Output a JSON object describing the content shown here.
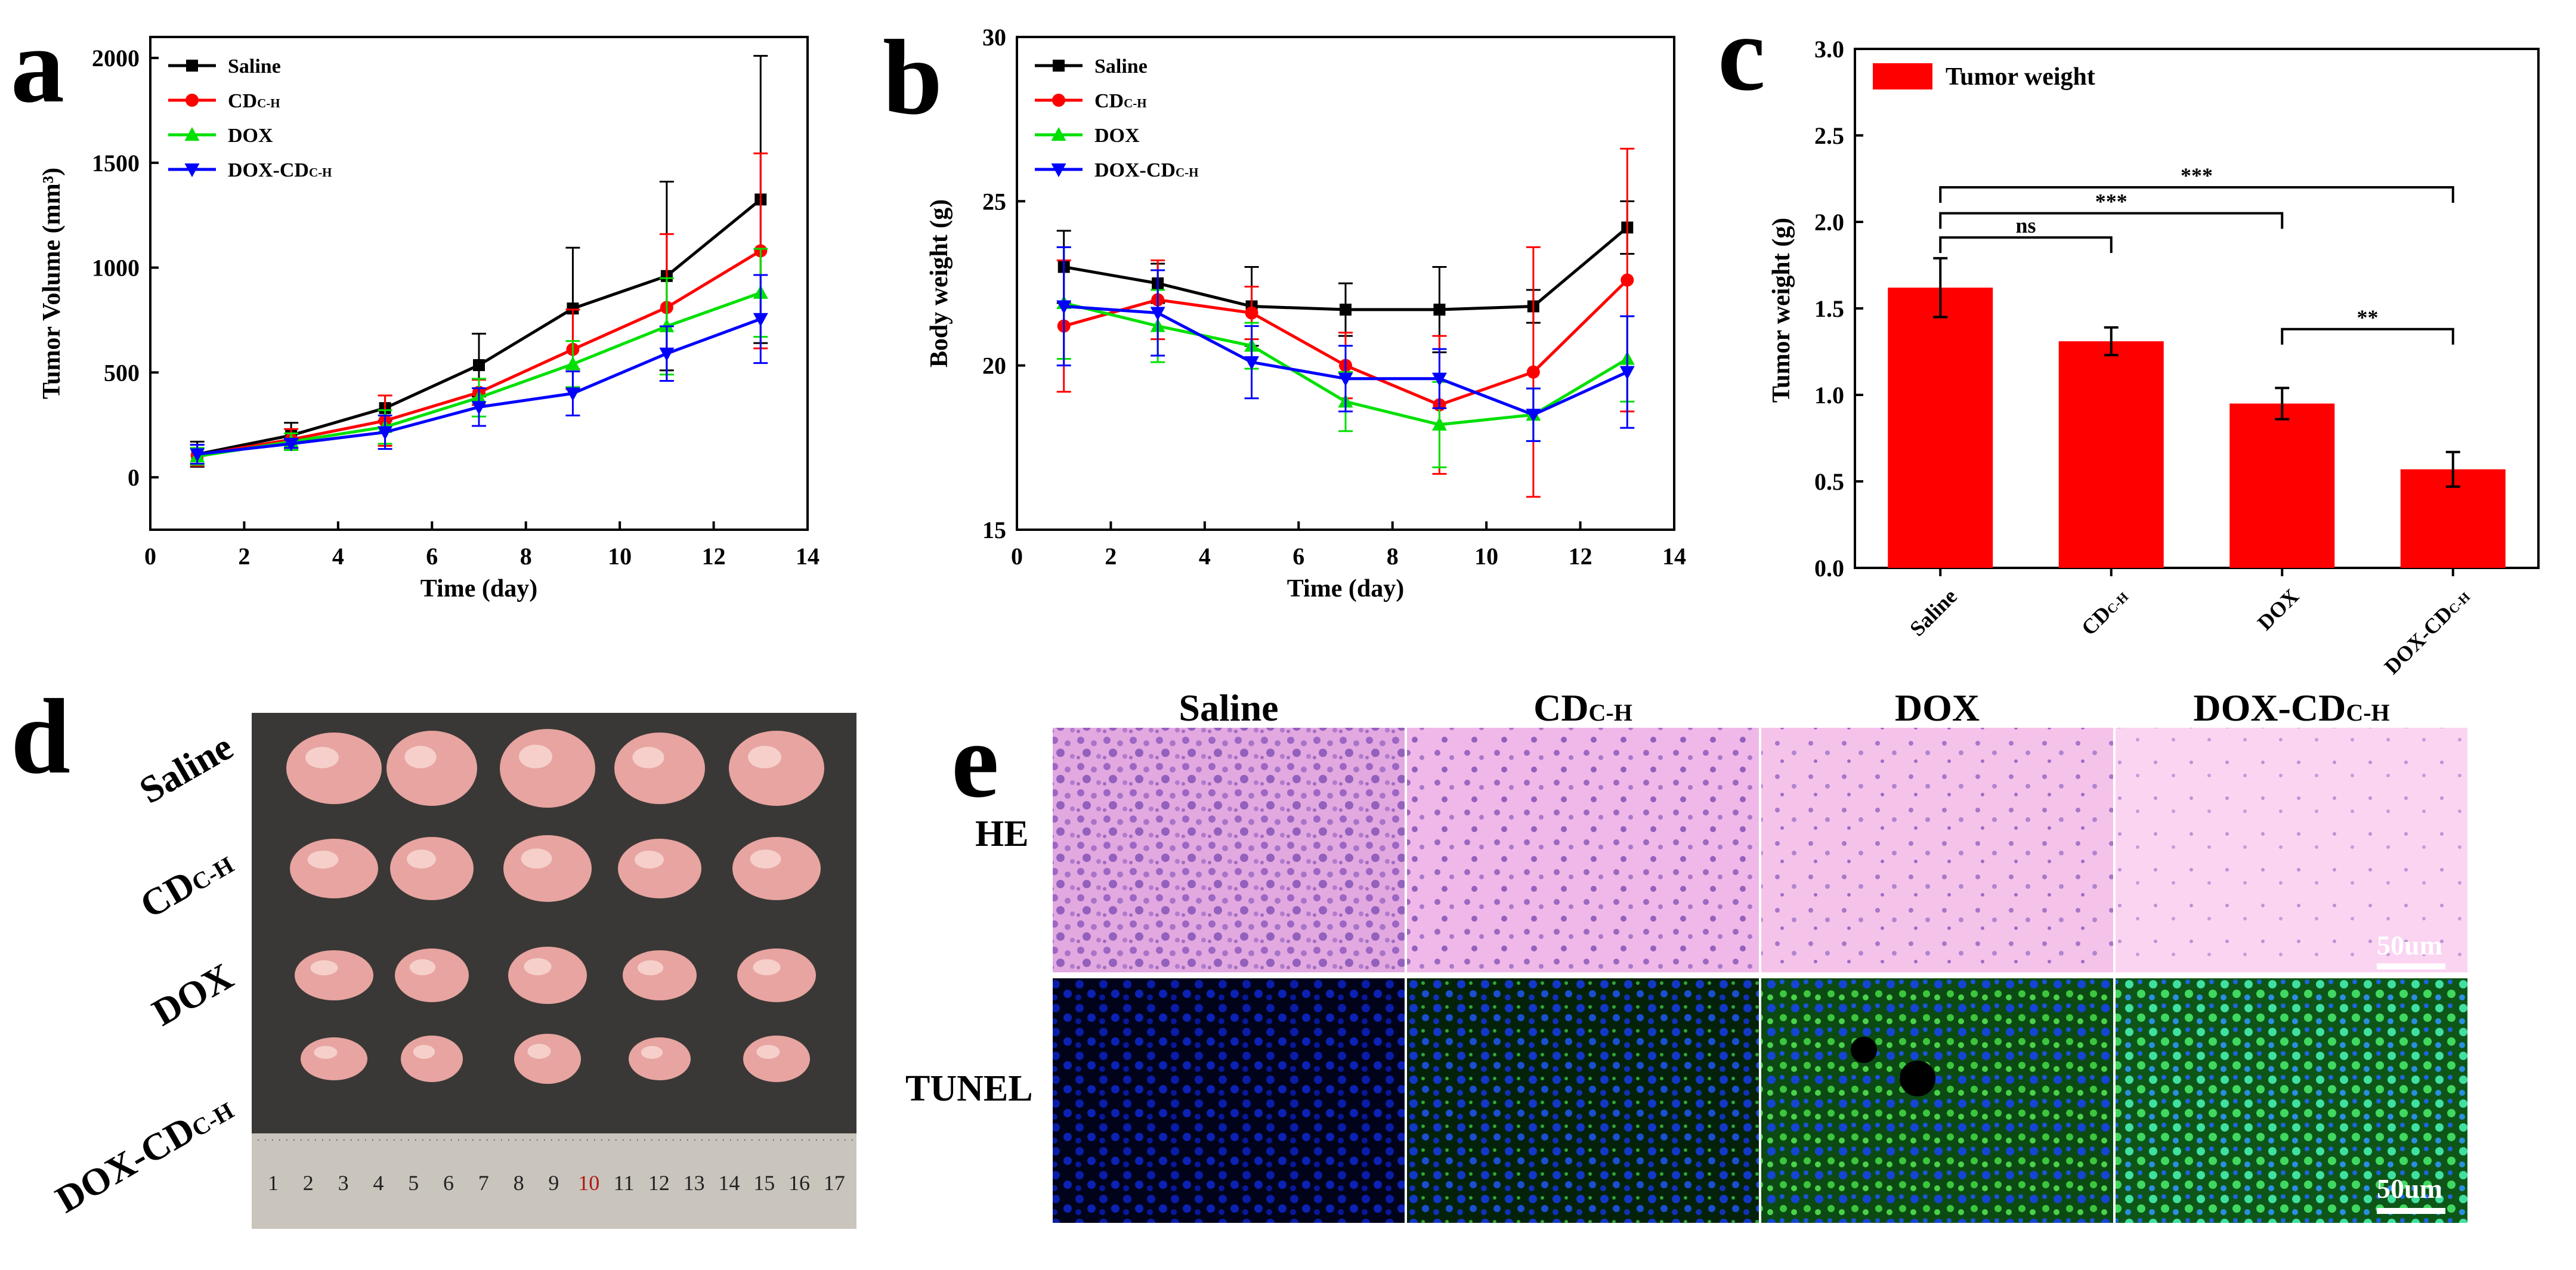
{
  "figure": {
    "panel_letters": [
      "a",
      "b",
      "c",
      "d",
      "e"
    ]
  },
  "chart_data": [
    {
      "id": "a",
      "type": "line",
      "title": "",
      "xlabel": "Time (day)",
      "ylabel": "Tumor Volume (mm³)",
      "xlim": [
        0,
        14
      ],
      "ylim": [
        -250,
        2100
      ],
      "xticks": [
        0,
        2,
        4,
        6,
        8,
        10,
        12,
        14
      ],
      "yticks": [
        0,
        500,
        1000,
        1500,
        2000
      ],
      "x": [
        1,
        3,
        5,
        7,
        9,
        11,
        13
      ],
      "legend_position": "top-left",
      "series": [
        {
          "name": "Saline",
          "color": "#000000",
          "marker": "square",
          "values": [
            110,
            200,
            330,
            535,
            805,
            960,
            1325
          ],
          "errors": [
            60,
            60,
            60,
            150,
            290,
            450,
            685
          ]
        },
        {
          "name": "CDC-H",
          "name_main": "CD",
          "name_sub": "C-H",
          "color": "#ff0000",
          "marker": "circle",
          "values": [
            105,
            180,
            270,
            405,
            610,
            810,
            1080
          ],
          "errors": [
            50,
            50,
            120,
            60,
            190,
            350,
            465
          ]
        },
        {
          "name": "DOX",
          "color": "#00e000",
          "marker": "triangle-up",
          "values": [
            100,
            170,
            240,
            380,
            540,
            720,
            880
          ],
          "errors": [
            40,
            40,
            80,
            90,
            110,
            230,
            210
          ]
        },
        {
          "name": "DOX-CDC-H",
          "name_main": "DOX-CD",
          "name_sub": "C-H",
          "color": "#0000ff",
          "marker": "triangle-down",
          "values": [
            110,
            160,
            215,
            335,
            400,
            590,
            755
          ],
          "errors": [
            45,
            20,
            80,
            90,
            105,
            130,
            210
          ]
        }
      ]
    },
    {
      "id": "b",
      "type": "line",
      "title": "",
      "xlabel": "Time (day)",
      "ylabel": "Body weight (g)",
      "xlim": [
        0,
        14
      ],
      "ylim": [
        15,
        30
      ],
      "xticks": [
        0,
        2,
        4,
        6,
        8,
        10,
        12,
        14
      ],
      "yticks": [
        15,
        20,
        25,
        30
      ],
      "x": [
        1,
        3,
        5,
        7,
        9,
        11,
        13
      ],
      "legend_position": "top-left",
      "series": [
        {
          "name": "Saline",
          "color": "#000000",
          "marker": "square",
          "values": [
            23.0,
            22.5,
            21.8,
            21.7,
            21.7,
            21.8,
            24.2
          ],
          "errors": [
            1.1,
            0.6,
            1.2,
            0.8,
            1.3,
            0.5,
            0.8
          ]
        },
        {
          "name": "CDC-H",
          "name_main": "CD",
          "name_sub": "C-H",
          "color": "#ff0000",
          "marker": "circle",
          "values": [
            21.2,
            22.0,
            21.6,
            20.0,
            18.8,
            19.8,
            22.6
          ],
          "errors": [
            2.0,
            1.2,
            0.8,
            1.0,
            2.1,
            3.8,
            4.0
          ]
        },
        {
          "name": "DOX",
          "color": "#00e000",
          "marker": "triangle-up",
          "values": [
            21.9,
            21.2,
            20.6,
            18.9,
            18.2,
            18.5,
            20.2
          ],
          "errors": [
            1.7,
            1.1,
            0.7,
            0.9,
            1.3,
            0.8,
            1.3
          ]
        },
        {
          "name": "DOX-CDC-H",
          "name_main": "DOX-CD",
          "name_sub": "C-H",
          "color": "#0000ff",
          "marker": "triangle-down",
          "values": [
            21.8,
            21.6,
            20.1,
            19.6,
            19.6,
            18.5,
            19.8
          ],
          "errors": [
            1.8,
            1.3,
            1.1,
            1.0,
            0.9,
            0.8,
            1.7
          ]
        }
      ]
    },
    {
      "id": "c",
      "type": "bar",
      "title": "",
      "xlabel": "",
      "ylabel": "Tumor weight (g)",
      "ylim": [
        0,
        3.0
      ],
      "yticks": [
        0.0,
        0.5,
        1.0,
        1.5,
        2.0,
        2.5,
        3.0
      ],
      "ytick_labels": [
        "0.0",
        "0.5",
        "1.0",
        "1.5",
        "2.0",
        "2.5",
        "3.0"
      ],
      "legend": "Tumor weight",
      "legend_position": "top-left",
      "bar_color": "#ff0000",
      "categories": [
        "Saline",
        "CDC-H",
        "DOX",
        "DOX-CDC-H"
      ],
      "category_parts": [
        {
          "main": "Saline",
          "sub": ""
        },
        {
          "main": "CD",
          "sub": "C-H"
        },
        {
          "main": "DOX",
          "sub": ""
        },
        {
          "main": "DOX-CD",
          "sub": "C-H"
        }
      ],
      "values": [
        1.62,
        1.31,
        0.95,
        0.57
      ],
      "errors": [
        0.17,
        0.08,
        0.09,
        0.1
      ],
      "significance": [
        {
          "from": 0,
          "to": 1,
          "label": "ns",
          "level": 1.91
        },
        {
          "from": 0,
          "to": 2,
          "label": "***",
          "level": 2.05
        },
        {
          "from": 0,
          "to": 3,
          "label": "***",
          "level": 2.2
        },
        {
          "from": 2,
          "to": 3,
          "label": "**",
          "level": 1.38
        }
      ]
    }
  ],
  "photo_d": {
    "row_labels": [
      {
        "main": "Saline",
        "sub": ""
      },
      {
        "main": "CD",
        "sub": "C-H"
      },
      {
        "main": "DOX",
        "sub": ""
      },
      {
        "main": "DOX-CD",
        "sub": "C-H"
      }
    ],
    "tumors_per_row": 5,
    "ruler_numbers": [
      "1",
      "2",
      "3",
      "4",
      "5",
      "6",
      "7",
      "8",
      "9",
      "10",
      "11",
      "12",
      "13",
      "14",
      "15",
      "16",
      "17"
    ]
  },
  "micro_e": {
    "columns": [
      {
        "main": "Saline",
        "sub": ""
      },
      {
        "main": "CD",
        "sub": "C-H"
      },
      {
        "main": "DOX",
        "sub": ""
      },
      {
        "main": "DOX-CD",
        "sub": "C-H"
      }
    ],
    "rows": [
      "HE",
      "TUNEL"
    ],
    "scale_bar_label": "50um"
  }
}
